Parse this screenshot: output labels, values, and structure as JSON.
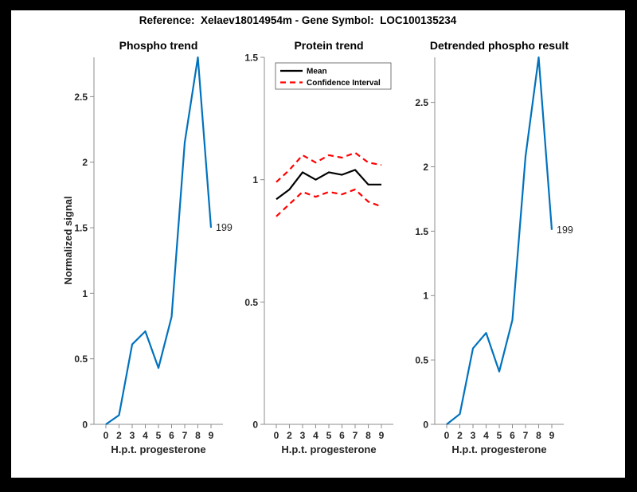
{
  "figure": {
    "title": "Reference:  Xelaev18014954m - Gene Symbol:  LOC100135234",
    "background_color": "#000000",
    "canvas_color": "#ffffff",
    "axis_color": "#8c8c8c",
    "text_color": "#262626",
    "accent_blue": "#0072BD",
    "accent_red": "#ff0000"
  },
  "chart_data": [
    {
      "type": "line",
      "title": "Phospho trend",
      "xlabel": "H.p.t. progesterone",
      "ylabel": "Normalized signal",
      "categories": [
        "0",
        "2",
        "3",
        "4",
        "5",
        "6",
        "7",
        "8",
        "9"
      ],
      "ylim": [
        0,
        2.8
      ],
      "yticks": [
        "0",
        "0.5",
        "1",
        "1.5",
        "2",
        "2.5"
      ],
      "grid": false,
      "series": [
        {
          "name": "Phospho signal",
          "color": "#0072BD",
          "dash": "",
          "values": [
            0,
            0.07,
            0.61,
            0.71,
            0.43,
            0.82,
            2.15,
            2.8,
            1.5
          ]
        }
      ],
      "annotation": {
        "text": "199",
        "x_index": 8,
        "value": 1.5
      },
      "legend": null
    },
    {
      "type": "line",
      "title": "Protein trend",
      "xlabel": "H.p.t. progesterone",
      "ylabel": "",
      "categories": [
        "0",
        "2",
        "3",
        "4",
        "5",
        "6",
        "7",
        "8",
        "9"
      ],
      "ylim": [
        0,
        1.5
      ],
      "yticks": [
        "0",
        "0.5",
        "1",
        "1.5"
      ],
      "grid": false,
      "series": [
        {
          "name": "Mean",
          "color": "#000000",
          "dash": "",
          "values": [
            0.92,
            0.96,
            1.03,
            1.0,
            1.03,
            1.02,
            1.04,
            0.98,
            0.98
          ]
        },
        {
          "name": "Confidence Interval upper",
          "color": "#ff0000",
          "dash": "7 5",
          "values": [
            0.99,
            1.04,
            1.1,
            1.07,
            1.1,
            1.09,
            1.11,
            1.07,
            1.06
          ]
        },
        {
          "name": "Confidence Interval lower",
          "color": "#ff0000",
          "dash": "7 5",
          "values": [
            0.85,
            0.9,
            0.95,
            0.93,
            0.95,
            0.94,
            0.96,
            0.91,
            0.89
          ]
        }
      ],
      "annotation": null,
      "legend": {
        "position": "northwest",
        "entries": [
          {
            "label": "Mean",
            "color": "#000000",
            "dash": ""
          },
          {
            "label": "Confidence Interval",
            "color": "#ff0000",
            "dash": "7 5"
          }
        ]
      }
    },
    {
      "type": "line",
      "title": "Detrended phospho result",
      "xlabel": "H.p.t. progesterone",
      "ylabel": "",
      "categories": [
        "0",
        "2",
        "3",
        "4",
        "5",
        "6",
        "7",
        "8",
        "9"
      ],
      "ylim": [
        0,
        2.85
      ],
      "yticks": [
        "0",
        "0.5",
        "1",
        "1.5",
        "2",
        "2.5"
      ],
      "grid": false,
      "series": [
        {
          "name": "Detrended phospho signal",
          "color": "#0072BD",
          "dash": "",
          "values": [
            0,
            0.08,
            0.59,
            0.71,
            0.41,
            0.81,
            2.08,
            2.85,
            1.51
          ]
        }
      ],
      "annotation": {
        "text": "199",
        "x_index": 8,
        "value": 1.51
      },
      "legend": null
    }
  ]
}
